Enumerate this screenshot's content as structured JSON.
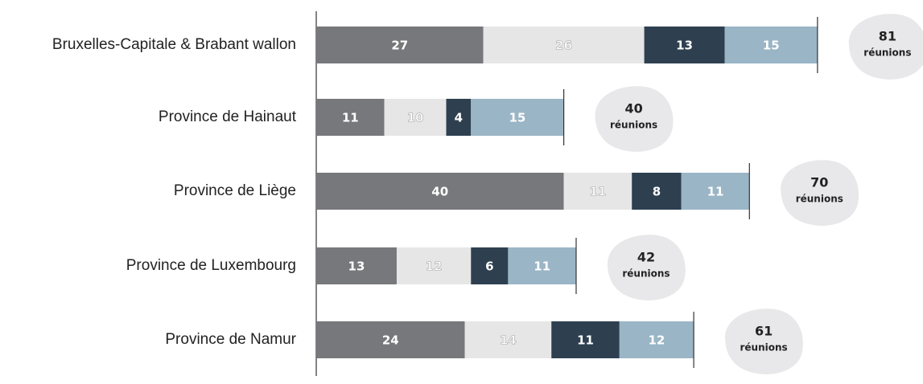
{
  "chart_data": {
    "type": "stacked-bar-horizontal",
    "categories": [
      "Bruxelles-Capitale & Brabant wallon",
      "Province de Hainaut",
      "Province de Liège",
      "Province de Luxembourg",
      "Province de Namur"
    ],
    "series": [
      {
        "color": "#77787b",
        "values": [
          27,
          11,
          40,
          13,
          24
        ]
      },
      {
        "color": "#e6e6e6",
        "values": [
          26,
          10,
          11,
          12,
          14
        ]
      },
      {
        "color": "#2e4050",
        "values": [
          13,
          4,
          8,
          6,
          11
        ]
      },
      {
        "color": "#9ab5c6",
        "values": [
          15,
          15,
          11,
          11,
          12
        ]
      }
    ],
    "totals": [
      81,
      40,
      70,
      42,
      61
    ],
    "totals_unit": "réunions",
    "total_bubble_color": "#e8e8ea"
  }
}
